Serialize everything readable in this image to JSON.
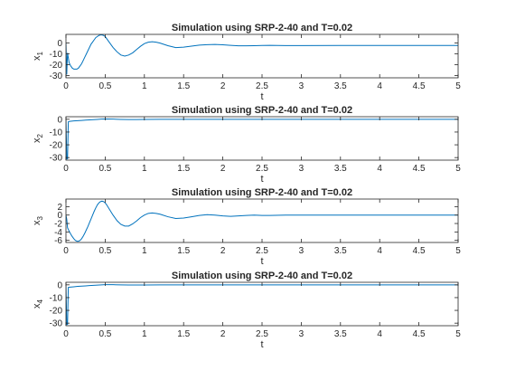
{
  "chart_data": [
    {
      "type": "line",
      "title": "Simulation using SRP-2-40 and T=0.02",
      "xlabel": "t",
      "ylabel": {
        "base": "x",
        "sub": "1"
      },
      "xlim": [
        0,
        5
      ],
      "ylim": [
        -32,
        8
      ],
      "xticks": [
        "0",
        "0.5",
        "1",
        "1.5",
        "2",
        "2.5",
        "3",
        "3.5",
        "4",
        "4.5",
        "5"
      ],
      "yticks": [
        "0",
        "-10",
        "-20",
        "-30"
      ],
      "color": "#0072BD",
      "series": [
        {
          "x": [
            0,
            0.01,
            0.02,
            0.04,
            0.06,
            0.08,
            0.1,
            0.12,
            0.14,
            0.16,
            0.18,
            0.2,
            0.22,
            0.24,
            0.26,
            0.28,
            0.3,
            0.32,
            0.34,
            0.36,
            0.38,
            0.4,
            0.42,
            0.44,
            0.46,
            0.48,
            0.5,
            0.52,
            0.55,
            0.6,
            0.65,
            0.7,
            0.75,
            0.8,
            0.85,
            0.9,
            0.95,
            1.0,
            1.05,
            1.1,
            1.15,
            1.2,
            1.3,
            1.4,
            1.5,
            1.6,
            1.7,
            1.8,
            1.9,
            2.0,
            2.1,
            2.2,
            2.3,
            2.4,
            2.5,
            2.6,
            2.8,
            3.0,
            3.5,
            4.0,
            4.5,
            5.0
          ],
          "values": [
            0,
            -29,
            -9,
            -18,
            -21,
            -23,
            -24,
            -24,
            -24,
            -23,
            -21,
            -19,
            -16,
            -13,
            -10,
            -7,
            -4,
            -1,
            1,
            3,
            5,
            6,
            7,
            7.5,
            7.5,
            7,
            6,
            4,
            1,
            -4,
            -8,
            -11,
            -12,
            -11,
            -9,
            -6,
            -3,
            -0.5,
            0.8,
            1.2,
            0.8,
            0,
            -2.4,
            -4.2,
            -3.8,
            -2.8,
            -1.9,
            -1.5,
            -1.3,
            -1.6,
            -2.1,
            -2.5,
            -2.5,
            -2.4,
            -2.2,
            -2.1,
            -2.3,
            -2.3,
            -2.2,
            -2.2,
            -2.2,
            -2.2
          ]
        }
      ]
    },
    {
      "type": "line",
      "title": "Simulation using SRP-2-40 and T=0.02",
      "xlabel": "t",
      "ylabel": {
        "base": "x",
        "sub": "2"
      },
      "xlim": [
        0,
        5
      ],
      "ylim": [
        -32,
        2
      ],
      "xticks": [
        "0",
        "0.5",
        "1",
        "1.5",
        "2",
        "2.5",
        "3",
        "3.5",
        "4",
        "4.5",
        "5"
      ],
      "yticks": [
        "0",
        "-10",
        "-20",
        "-30"
      ],
      "color": "#0072BD",
      "series": [
        {
          "x": [
            0,
            0.01,
            0.02,
            0.03,
            0.05,
            0.1,
            0.15,
            0.2,
            0.25,
            0.3,
            0.35,
            0.4,
            0.45,
            0.5,
            0.6,
            0.7,
            0.8,
            0.9,
            1.0,
            1.2,
            1.5,
            2.0,
            2.5,
            3.0,
            4.0,
            5.0
          ],
          "values": [
            0,
            -31,
            -31,
            -2,
            -1.6,
            -1.3,
            -1.1,
            -0.9,
            -0.7,
            -0.5,
            -0.3,
            -0.1,
            0.1,
            0.2,
            0.1,
            -0.1,
            -0.2,
            -0.2,
            -0.1,
            0,
            0,
            0,
            0,
            0,
            0,
            0
          ]
        }
      ]
    },
    {
      "type": "line",
      "title": "Simulation using SRP-2-40 and T=0.02",
      "xlabel": "t",
      "ylabel": {
        "base": "x",
        "sub": "3"
      },
      "xlim": [
        0,
        5
      ],
      "ylim": [
        -6.5,
        3.8
      ],
      "xticks": [
        "0",
        "0.5",
        "1",
        "1.5",
        "2",
        "2.5",
        "3",
        "3.5",
        "4",
        "4.5",
        "5"
      ],
      "yticks": [
        "2",
        "0",
        "-2",
        "-4",
        "-6"
      ],
      "color": "#0072BD",
      "series": [
        {
          "x": [
            0,
            0.01,
            0.02,
            0.04,
            0.06,
            0.08,
            0.1,
            0.12,
            0.14,
            0.16,
            0.18,
            0.2,
            0.22,
            0.24,
            0.26,
            0.28,
            0.3,
            0.32,
            0.34,
            0.36,
            0.38,
            0.4,
            0.42,
            0.44,
            0.46,
            0.48,
            0.5,
            0.52,
            0.55,
            0.6,
            0.65,
            0.7,
            0.75,
            0.8,
            0.85,
            0.9,
            0.95,
            1.0,
            1.05,
            1.1,
            1.15,
            1.2,
            1.3,
            1.4,
            1.5,
            1.6,
            1.7,
            1.8,
            1.9,
            2.0,
            2.1,
            2.2,
            2.3,
            2.4,
            2.5,
            2.6,
            2.8,
            3.0,
            3.2,
            3.5,
            4.0,
            4.5,
            5.0
          ],
          "values": [
            0,
            -1,
            -3,
            -3.8,
            -4.5,
            -5.1,
            -5.6,
            -6.0,
            -6.2,
            -6.2,
            -6.0,
            -5.6,
            -5.0,
            -4.3,
            -3.5,
            -2.7,
            -1.8,
            -0.9,
            0.0,
            0.9,
            1.7,
            2.4,
            2.9,
            3.2,
            3.3,
            3.2,
            2.9,
            2.4,
            1.5,
            0.0,
            -1.3,
            -2.2,
            -2.6,
            -2.6,
            -2.1,
            -1.4,
            -0.6,
            0.0,
            0.4,
            0.5,
            0.4,
            0.2,
            -0.4,
            -0.8,
            -0.7,
            -0.4,
            -0.1,
            0.1,
            0.0,
            -0.2,
            -0.3,
            -0.2,
            -0.1,
            0.0,
            -0.1,
            -0.1,
            0.0,
            0.0,
            0.0,
            0.0,
            0.0,
            0.0,
            0.0
          ]
        }
      ]
    },
    {
      "type": "line",
      "title": "Simulation using SRP-2-40 and T=0.02",
      "xlabel": "t",
      "ylabel": {
        "base": "x",
        "sub": "4"
      },
      "xlim": [
        0,
        5
      ],
      "ylim": [
        -32,
        2
      ],
      "xticks": [
        "0",
        "0.5",
        "1",
        "1.5",
        "2",
        "2.5",
        "3",
        "3.5",
        "4",
        "4.5",
        "5"
      ],
      "yticks": [
        "0",
        "-10",
        "-20",
        "-30"
      ],
      "color": "#0072BD",
      "series": [
        {
          "x": [
            0,
            0.01,
            0.02,
            0.03,
            0.05,
            0.1,
            0.15,
            0.2,
            0.25,
            0.3,
            0.35,
            0.4,
            0.45,
            0.5,
            0.6,
            0.7,
            0.8,
            0.9,
            1.0,
            1.2,
            1.5,
            2.0,
            2.5,
            3.0,
            4.0,
            5.0
          ],
          "values": [
            0,
            -31,
            -31,
            -2,
            -1.8,
            -1.5,
            -1.2,
            -1.0,
            -0.8,
            -0.6,
            -0.4,
            -0.2,
            0.0,
            0.1,
            0.1,
            0.0,
            -0.1,
            -0.1,
            -0.1,
            0,
            0,
            0,
            0,
            0,
            0,
            0
          ]
        }
      ]
    }
  ]
}
